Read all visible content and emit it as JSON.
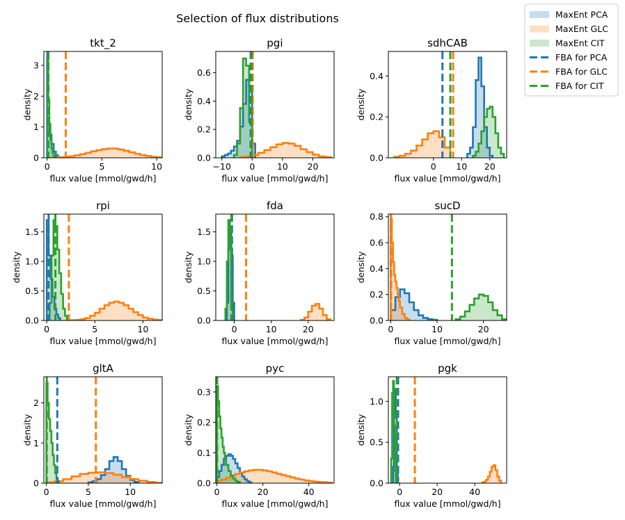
{
  "figure": {
    "title": "Selection of flux distributions",
    "legend": {
      "placement": "top-right, outside axes",
      "entries": [
        {
          "label": "MaxEnt PCA",
          "kind": "patch",
          "color": "#1f77b4"
        },
        {
          "label": "MaxEnt GLC",
          "kind": "patch",
          "color": "#ff7f0e"
        },
        {
          "label": "MaxEnt CIT",
          "kind": "patch",
          "color": "#2ca02c"
        },
        {
          "label": "FBA for PCA",
          "kind": "dash",
          "color": "#1f77b4"
        },
        {
          "label": "FBA for GLC",
          "kind": "dash",
          "color": "#ff7f0e"
        },
        {
          "label": "FBA for CIT",
          "kind": "dash",
          "color": "#2ca02c"
        }
      ]
    }
  },
  "colors": {
    "PCA": "#1f77b4",
    "GLC": "#ff7f0e",
    "CIT": "#2ca02c"
  },
  "chart_data": [
    {
      "type": "histogram",
      "title": "tkt_2",
      "xlabel": "flux value [mmol/gwd/h]",
      "ylabel": "density",
      "xlim": [
        -0.3,
        10.5
      ],
      "ylim": [
        0,
        3.45
      ],
      "xticks": [
        0,
        5,
        10
      ],
      "yticks": [
        0,
        1,
        2,
        3
      ],
      "series": [
        {
          "name": "MaxEnt PCA",
          "bins": [
            0,
            0.2,
            0.4,
            0.6,
            0.8,
            1.0
          ],
          "density": [
            1.3,
            0.75,
            0.45,
            0.2,
            0.08
          ]
        },
        {
          "name": "MaxEnt GLC",
          "bins": [
            0,
            0.5,
            1,
            1.5,
            2,
            2.5,
            3,
            3.5,
            4,
            4.5,
            5,
            5.5,
            6,
            6.5,
            7,
            7.5,
            8,
            8.5,
            9,
            9.5,
            10,
            10.5
          ],
          "density": [
            0.01,
            0.01,
            0.02,
            0.03,
            0.05,
            0.08,
            0.12,
            0.16,
            0.21,
            0.25,
            0.28,
            0.3,
            0.3,
            0.27,
            0.23,
            0.18,
            0.13,
            0.09,
            0.06,
            0.03,
            0.02
          ]
        },
        {
          "name": "MaxEnt CIT",
          "bins": [
            0,
            0.1,
            0.2,
            0.3,
            0.4,
            0.5,
            0.6,
            0.7,
            0.8
          ],
          "density": [
            3.3,
            1.9,
            1.1,
            0.6,
            0.3,
            0.15,
            0.06,
            0.02
          ]
        }
      ],
      "fba": {
        "PCA": 0.03,
        "GLC": 1.7,
        "CIT": 0.12
      }
    },
    {
      "type": "histogram",
      "title": "pgi",
      "xlabel": "flux value [mmol/gwd/h]",
      "ylabel": "density",
      "xlim": [
        -12,
        27
      ],
      "ylim": [
        0,
        0.75
      ],
      "xticks": [
        -10,
        0,
        10,
        20
      ],
      "yticks": [
        0,
        0.2,
        0.4,
        0.6
      ],
      "series": [
        {
          "name": "MaxEnt PCA",
          "bins": [
            -10,
            -9,
            -8,
            -7,
            -6,
            -5,
            -4,
            -3,
            -2,
            -1,
            0,
            1
          ],
          "density": [
            0.01,
            0.02,
            0.03,
            0.05,
            0.08,
            0.12,
            0.22,
            0.38,
            0.55,
            0.5,
            0.1
          ]
        },
        {
          "name": "MaxEnt GLC",
          "bins": [
            -4,
            -2,
            0,
            2,
            4,
            6,
            8,
            10,
            12,
            14,
            16,
            18,
            20,
            22,
            24,
            26
          ],
          "density": [
            0.005,
            0.01,
            0.02,
            0.035,
            0.055,
            0.075,
            0.095,
            0.105,
            0.1,
            0.085,
            0.06,
            0.04,
            0.022,
            0.01,
            0.005
          ]
        },
        {
          "name": "MaxEnt CIT",
          "bins": [
            -6,
            -5,
            -4,
            -3,
            -2,
            -1,
            0
          ],
          "density": [
            0.02,
            0.1,
            0.35,
            0.7,
            0.65,
            0.25
          ]
        }
      ],
      "fba": {
        "PCA": -0.5,
        "GLC": 0.2,
        "CIT": -0.2
      }
    },
    {
      "type": "histogram",
      "title": "sdhCAB",
      "xlabel": "flux value [mmol/gwd/h]",
      "ylabel": "density",
      "xlim": [
        -16,
        26
      ],
      "ylim": [
        0,
        0.52
      ],
      "xticks": [
        0,
        10,
        20
      ],
      "yticks": [
        0,
        0.2,
        0.4
      ],
      "series": [
        {
          "name": "MaxEnt PCA",
          "bins": [
            12,
            13,
            14,
            15,
            16,
            17,
            18,
            19,
            20,
            21
          ],
          "density": [
            0.02,
            0.05,
            0.15,
            0.38,
            0.49,
            0.35,
            0.15,
            0.05,
            0.01
          ]
        },
        {
          "name": "MaxEnt GLC",
          "bins": [
            -14,
            -12,
            -10,
            -8,
            -6,
            -4,
            -2,
            0,
            2,
            4,
            6
          ],
          "density": [
            0.005,
            0.01,
            0.02,
            0.035,
            0.06,
            0.09,
            0.12,
            0.13,
            0.1,
            0.05
          ]
        },
        {
          "name": "MaxEnt CIT",
          "bins": [
            14,
            15,
            16,
            17,
            18,
            19,
            20,
            21,
            22,
            23,
            24,
            25
          ],
          "density": [
            0.01,
            0.03,
            0.07,
            0.13,
            0.2,
            0.24,
            0.25,
            0.2,
            0.12,
            0.05,
            0.02
          ]
        }
      ],
      "fba": {
        "PCA": 3.2,
        "GLC": 7.0,
        "CIT": 6.0
      }
    },
    {
      "type": "histogram",
      "title": "rpi",
      "xlabel": "flux value [mmol/gwd/h]",
      "ylabel": "density",
      "xlim": [
        -0.3,
        12
      ],
      "ylim": [
        0,
        1.8
      ],
      "xticks": [
        0,
        5,
        10
      ],
      "yticks": [
        0,
        0.5,
        1.0,
        1.5
      ],
      "series": [
        {
          "name": "MaxEnt PCA",
          "bins": [
            0,
            0.2,
            0.4,
            0.6,
            0.8,
            1.0,
            1.2,
            1.4
          ],
          "density": [
            1.7,
            1.1,
            0.7,
            0.4,
            0.2,
            0.1,
            0.04
          ]
        },
        {
          "name": "MaxEnt GLC",
          "bins": [
            2.5,
            3,
            3.5,
            4,
            4.5,
            5,
            5.5,
            6,
            6.5,
            7,
            7.5,
            8,
            8.5,
            9,
            9.5,
            10,
            10.5,
            11,
            11.5,
            12
          ],
          "density": [
            0.005,
            0.01,
            0.02,
            0.04,
            0.08,
            0.13,
            0.2,
            0.26,
            0.3,
            0.32,
            0.3,
            0.26,
            0.2,
            0.14,
            0.09,
            0.05,
            0.03,
            0.015,
            0.01
          ]
        },
        {
          "name": "MaxEnt CIT",
          "bins": [
            0.3,
            0.5,
            0.7,
            0.9,
            1.1,
            1.3,
            1.5,
            1.7,
            1.9,
            2.1
          ],
          "density": [
            0.3,
            1.1,
            1.7,
            1.6,
            1.2,
            0.8,
            0.45,
            0.2,
            0.08
          ]
        }
      ],
      "fba": {
        "PCA": 0.2,
        "GLC": 2.3,
        "CIT": 0.9
      }
    },
    {
      "type": "histogram",
      "title": "fda",
      "xlabel": "flux value [mmol/gwd/h]",
      "ylabel": "density",
      "xlim": [
        -5,
        27
      ],
      "ylim": [
        0,
        1.8
      ],
      "xticks": [
        0,
        10,
        20
      ],
      "yticks": [
        0,
        0.5,
        1.0,
        1.5
      ],
      "series": [
        {
          "name": "MaxEnt PCA",
          "bins": [
            -2,
            -1.6,
            -1.2,
            -0.8,
            -0.4,
            0
          ],
          "density": [
            0.3,
            1.2,
            1.6,
            1.1,
            0.3
          ]
        },
        {
          "name": "MaxEnt GLC",
          "bins": [
            18,
            19,
            20,
            21,
            22,
            23,
            24,
            25,
            26
          ],
          "density": [
            0.01,
            0.05,
            0.15,
            0.25,
            0.28,
            0.2,
            0.09,
            0.02
          ]
        },
        {
          "name": "MaxEnt CIT",
          "bins": [
            -2.4,
            -2,
            -1.6,
            -1.2,
            -0.8,
            -0.4
          ],
          "density": [
            0.2,
            1.0,
            1.7,
            1.2,
            0.3
          ]
        }
      ],
      "fba": {
        "PCA": -0.6,
        "GLC": 3.2,
        "CIT": -0.8
      }
    },
    {
      "type": "histogram",
      "title": "sucD",
      "xlabel": "flux value [mmol/gwd/h]",
      "ylabel": "density",
      "xlim": [
        -0.5,
        25
      ],
      "ylim": [
        0,
        0.82
      ],
      "xticks": [
        0,
        10,
        20
      ],
      "yticks": [
        0,
        0.2,
        0.4,
        0.6,
        0.8
      ],
      "series": [
        {
          "name": "MaxEnt PCA",
          "bins": [
            0,
            1,
            2,
            3,
            4,
            5,
            6,
            7,
            8,
            9,
            10
          ],
          "density": [
            0.08,
            0.18,
            0.24,
            0.21,
            0.14,
            0.08,
            0.04,
            0.02,
            0.01,
            0.005
          ]
        },
        {
          "name": "MaxEnt GLC",
          "bins": [
            0,
            0.25,
            0.5,
            0.75,
            1,
            1.25,
            1.5,
            1.75,
            2,
            2.5,
            3,
            3.5,
            4
          ],
          "density": [
            0.78,
            0.6,
            0.45,
            0.35,
            0.3,
            0.25,
            0.2,
            0.15,
            0.1,
            0.05,
            0.02,
            0.01
          ]
        },
        {
          "name": "MaxEnt CIT",
          "bins": [
            14,
            15,
            16,
            17,
            18,
            19,
            20,
            21,
            22,
            23,
            24,
            25
          ],
          "density": [
            0.01,
            0.03,
            0.07,
            0.12,
            0.17,
            0.2,
            0.19,
            0.14,
            0.08,
            0.04,
            0.01
          ]
        }
      ],
      "fba": {
        "PCA": 0.05,
        "GLC": 0.1,
        "CIT": 13.2
      }
    },
    {
      "type": "histogram",
      "title": "gltA",
      "xlabel": "flux value [mmol/gwd/h]",
      "ylabel": "density",
      "xlim": [
        -0.3,
        13.8
      ],
      "ylim": [
        0,
        2.65
      ],
      "xticks": [
        0,
        5,
        10
      ],
      "yticks": [
        0,
        1,
        2
      ],
      "series": [
        {
          "name": "MaxEnt PCA",
          "bins": [
            5,
            5.5,
            6,
            6.5,
            7,
            7.5,
            8,
            8.5,
            9,
            9.5,
            10,
            10.5,
            11
          ],
          "density": [
            0.02,
            0.05,
            0.1,
            0.2,
            0.35,
            0.55,
            0.65,
            0.55,
            0.35,
            0.18,
            0.08,
            0.03
          ]
        },
        {
          "name": "MaxEnt GLC",
          "bins": [
            0,
            1,
            2,
            3,
            4,
            5,
            6,
            7,
            8,
            9,
            10,
            11,
            12,
            13,
            14
          ],
          "density": [
            0.02,
            0.05,
            0.1,
            0.17,
            0.23,
            0.26,
            0.27,
            0.25,
            0.21,
            0.15,
            0.1,
            0.06,
            0.03,
            0.01
          ]
        },
        {
          "name": "MaxEnt CIT",
          "bins": [
            0,
            0.15,
            0.3,
            0.45,
            0.6,
            0.75,
            0.9,
            1.05,
            1.2,
            1.35,
            1.5
          ],
          "density": [
            2.5,
            2.0,
            1.6,
            1.3,
            1.0,
            0.7,
            0.45,
            0.25,
            0.12,
            0.05
          ]
        }
      ],
      "fba": {
        "PCA": 1.3,
        "GLC": 5.9,
        "CIT": 0.05
      }
    },
    {
      "type": "histogram",
      "title": "pyc",
      "xlabel": "flux value [mmol/gwd/h]",
      "ylabel": "density",
      "xlim": [
        -0.5,
        51
      ],
      "ylim": [
        0,
        0.35
      ],
      "xticks": [
        0,
        20,
        40
      ],
      "yticks": [
        0,
        0.1,
        0.2,
        0.3
      ],
      "series": [
        {
          "name": "MaxEnt PCA",
          "bins": [
            0,
            1,
            2,
            3,
            4,
            5,
            6,
            7,
            8,
            9,
            10,
            11,
            12,
            13,
            14,
            15
          ],
          "density": [
            0.02,
            0.04,
            0.06,
            0.08,
            0.09,
            0.095,
            0.09,
            0.08,
            0.065,
            0.05,
            0.035,
            0.022,
            0.013,
            0.007,
            0.003
          ]
        },
        {
          "name": "MaxEnt GLC",
          "bins": [
            0,
            2,
            4,
            6,
            8,
            10,
            12,
            14,
            16,
            18,
            20,
            22,
            24,
            26,
            28,
            30,
            32,
            34,
            36,
            38,
            40,
            42,
            44,
            46,
            48,
            50
          ],
          "density": [
            0.008,
            0.012,
            0.018,
            0.024,
            0.03,
            0.035,
            0.039,
            0.042,
            0.044,
            0.044,
            0.042,
            0.039,
            0.035,
            0.031,
            0.027,
            0.023,
            0.019,
            0.015,
            0.012,
            0.009,
            0.007,
            0.005,
            0.004,
            0.003,
            0.002
          ]
        },
        {
          "name": "MaxEnt CIT",
          "bins": [
            0,
            0.5,
            1,
            1.5,
            2,
            2.5,
            3,
            3.5,
            4,
            5,
            6,
            7,
            8,
            9,
            10
          ],
          "density": [
            0.32,
            0.27,
            0.22,
            0.18,
            0.15,
            0.12,
            0.1,
            0.08,
            0.06,
            0.04,
            0.025,
            0.015,
            0.008,
            0.004
          ]
        }
      ],
      "fba": {
        "PCA": 0.05,
        "GLC": 0.1,
        "CIT": 0.1
      }
    },
    {
      "type": "histogram",
      "title": "pgk",
      "xlabel": "flux value [mmol/gwd/h]",
      "ylabel": "density",
      "xlim": [
        -6,
        57
      ],
      "ylim": [
        0,
        1.3
      ],
      "xticks": [
        0,
        20,
        40
      ],
      "yticks": [
        0,
        0.5,
        1.0
      ],
      "series": [
        {
          "name": "MaxEnt PCA",
          "bins": [
            -3.5,
            -3,
            -2.5,
            -2,
            -1.5,
            -1
          ],
          "density": [
            0.2,
            0.9,
            1.15,
            0.8,
            0.2
          ]
        },
        {
          "name": "MaxEnt GLC",
          "bins": [
            44,
            45,
            46,
            47,
            48,
            49,
            50,
            51,
            52,
            53,
            54
          ],
          "density": [
            0.01,
            0.02,
            0.04,
            0.08,
            0.14,
            0.2,
            0.22,
            0.16,
            0.08,
            0.03
          ]
        },
        {
          "name": "MaxEnt CIT",
          "bins": [
            -4.5,
            -4,
            -3.5,
            -3,
            -2.5,
            -2
          ],
          "density": [
            0.3,
            1.1,
            1.25,
            0.7,
            0.15
          ]
        }
      ],
      "fba": {
        "PCA": -0.8,
        "GLC": 8.1,
        "CIT": -1.5
      }
    }
  ]
}
